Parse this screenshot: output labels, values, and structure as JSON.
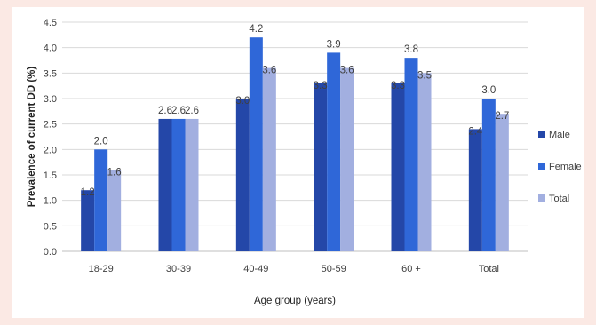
{
  "chart_data": {
    "type": "bar",
    "title": "",
    "xlabel": "Age group (years)",
    "ylabel": "Prevalence of current DD (%)",
    "ylim": [
      0,
      4.5
    ],
    "yticks": [
      "0.0",
      "0.5",
      "1.0",
      "1.5",
      "2.0",
      "2.5",
      "3.0",
      "3.5",
      "4.0",
      "4.5"
    ],
    "grid": true,
    "legend_position": "right",
    "categories": [
      "18-29",
      "30-39",
      "40-49",
      "50-59",
      "60 +",
      "Total"
    ],
    "series": [
      {
        "name": "Male",
        "color": "#2447a8",
        "values": [
          1.2,
          2.6,
          3.0,
          3.3,
          3.3,
          2.4
        ],
        "labels": [
          "1.2",
          "2.6",
          "3.0",
          "3.3",
          "3.3",
          "2.4"
        ]
      },
      {
        "name": "Female",
        "color": "#2f67d8",
        "values": [
          2.0,
          2.6,
          4.2,
          3.9,
          3.8,
          3.0
        ],
        "labels": [
          "2.0",
          "2.6",
          "4.2",
          "3.9",
          "3.8",
          "3.0"
        ]
      },
      {
        "name": "Total",
        "color": "#a2afe0",
        "values": [
          1.6,
          2.6,
          3.6,
          3.6,
          3.5,
          2.7
        ],
        "labels": [
          "1.6",
          "2.6",
          "3.6",
          "3.6",
          "3.5",
          "2.7"
        ]
      }
    ]
  }
}
